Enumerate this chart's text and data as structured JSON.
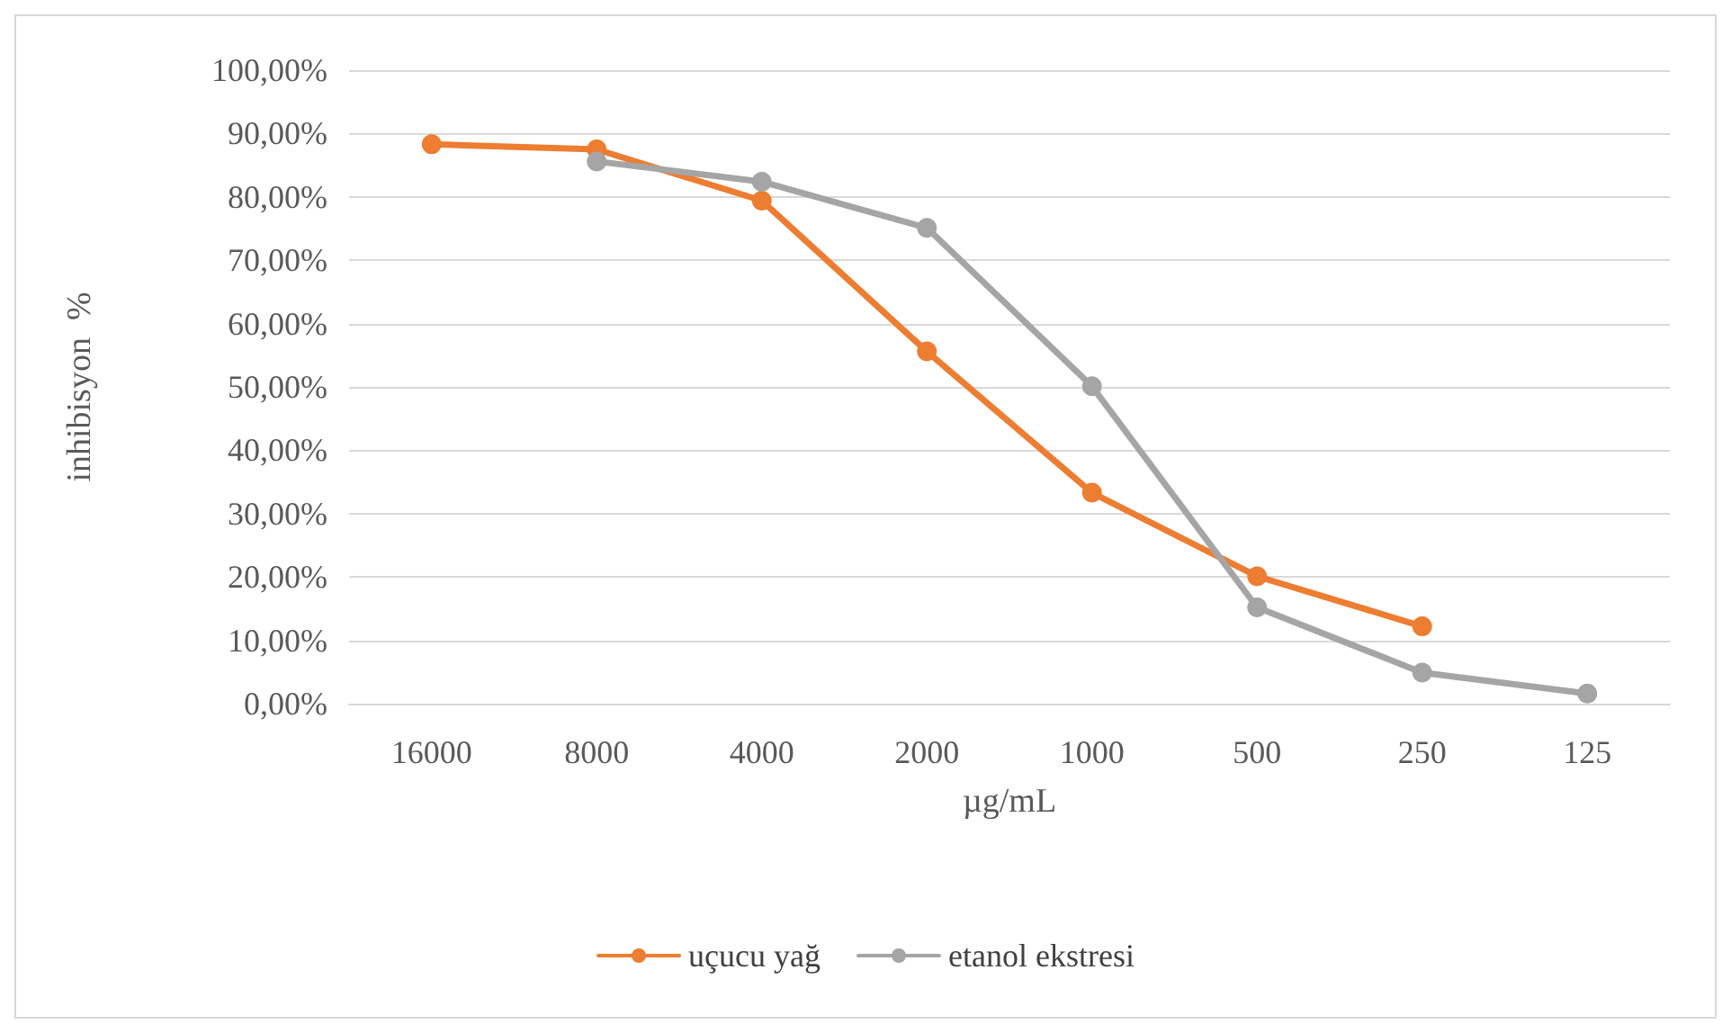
{
  "chart_data": {
    "type": "line",
    "xlabel": "µg/mL",
    "ylabel": "inhibisyon  %",
    "categories": [
      "16000",
      "8000",
      "4000",
      "2000",
      "1000",
      "500",
      "250",
      "125"
    ],
    "series": [
      {
        "name": "uçucu yağ",
        "color": "#ed7d31",
        "values": [
          88.3,
          87.5,
          79.4,
          55.6,
          33.3,
          20.1,
          12.2,
          null
        ]
      },
      {
        "name": "etanol ekstresi",
        "color": "#a5a5a5",
        "values": [
          null,
          85.6,
          82.4,
          75.1,
          50.1,
          15.2,
          4.9,
          1.6
        ]
      }
    ],
    "ylim": [
      0,
      100
    ],
    "yticks": [
      {
        "value": 0,
        "label": "0,00%"
      },
      {
        "value": 10,
        "label": "10,00%"
      },
      {
        "value": 20,
        "label": "20,00%"
      },
      {
        "value": 30,
        "label": "30,00%"
      },
      {
        "value": 40,
        "label": "40,00%"
      },
      {
        "value": 50,
        "label": "50,00%"
      },
      {
        "value": 60,
        "label": "60,00%"
      },
      {
        "value": 70,
        "label": "70,00%"
      },
      {
        "value": 80,
        "label": "80,00%"
      },
      {
        "value": 90,
        "label": "90,00%"
      },
      {
        "value": 100,
        "label": "100,00%"
      }
    ],
    "grid": "y",
    "legend": "bottom",
    "marker": "circle",
    "line_style": "solid"
  }
}
